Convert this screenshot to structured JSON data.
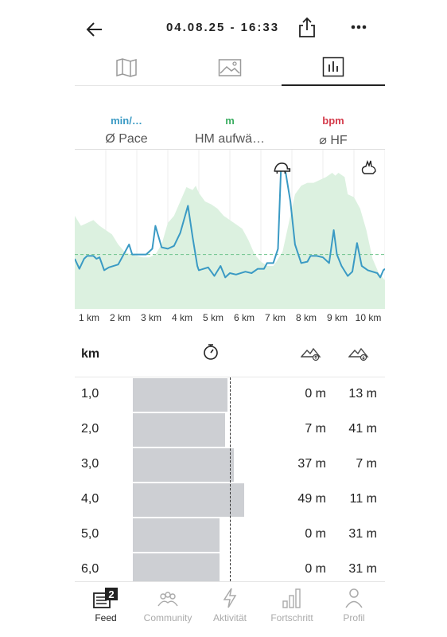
{
  "header": {
    "title": "04.08.25 - 16:33"
  },
  "view_tabs": [
    {
      "name": "map-icon"
    },
    {
      "name": "image-icon"
    },
    {
      "name": "chart-icon",
      "active": true
    }
  ],
  "metrics": [
    {
      "unit": "min/…",
      "label": "Ø Pace",
      "color": "#3a9ac4"
    },
    {
      "unit": "m",
      "label": "HM aufwä…",
      "color": "#3cae62"
    },
    {
      "unit": "bpm",
      "label": "⌀ HF",
      "color": "#d43a4a"
    }
  ],
  "chart_data": {
    "type": "line",
    "x_ticks": [
      "1 km",
      "2 km",
      "3 km",
      "4 km",
      "5 km",
      "6 km",
      "7 km",
      "8 km",
      "9 km",
      "10 km"
    ],
    "x_range_km": [
      0,
      10
    ],
    "series": [
      {
        "unit": "min/…",
        "points": [
          [
            0.0,
            0.35
          ],
          [
            0.15,
            0.28
          ],
          [
            0.3,
            0.35
          ],
          [
            0.4,
            0.37
          ],
          [
            0.6,
            0.37
          ],
          [
            0.7,
            0.35
          ],
          [
            0.8,
            0.36
          ],
          [
            0.95,
            0.27
          ],
          [
            1.1,
            0.29
          ],
          [
            1.4,
            0.31
          ],
          [
            1.75,
            0.45
          ],
          [
            1.85,
            0.38
          ],
          [
            2.2,
            0.38
          ],
          [
            2.3,
            0.38
          ],
          [
            2.5,
            0.42
          ],
          [
            2.6,
            0.58
          ],
          [
            2.8,
            0.43
          ],
          [
            3.0,
            0.42
          ],
          [
            3.2,
            0.44
          ],
          [
            3.4,
            0.53
          ],
          [
            3.65,
            0.72
          ],
          [
            3.8,
            0.5
          ],
          [
            3.95,
            0.3
          ],
          [
            4.0,
            0.27
          ],
          [
            4.3,
            0.29
          ],
          [
            4.5,
            0.23
          ],
          [
            4.7,
            0.3
          ],
          [
            4.85,
            0.22
          ],
          [
            5.0,
            0.25
          ],
          [
            5.2,
            0.24
          ],
          [
            5.5,
            0.26
          ],
          [
            5.7,
            0.25
          ],
          [
            5.9,
            0.28
          ],
          [
            6.1,
            0.28
          ],
          [
            6.2,
            0.32
          ],
          [
            6.4,
            0.32
          ],
          [
            6.55,
            0.42
          ],
          [
            6.65,
            1.0
          ],
          [
            6.8,
            0.95
          ],
          [
            6.95,
            0.75
          ],
          [
            7.1,
            0.45
          ],
          [
            7.3,
            0.32
          ],
          [
            7.5,
            0.33
          ],
          [
            7.6,
            0.37
          ],
          [
            7.8,
            0.37
          ],
          [
            8.0,
            0.36
          ],
          [
            8.2,
            0.32
          ],
          [
            8.35,
            0.55
          ],
          [
            8.45,
            0.38
          ],
          [
            8.6,
            0.3
          ],
          [
            8.8,
            0.23
          ],
          [
            8.95,
            0.26
          ],
          [
            9.1,
            0.46
          ],
          [
            9.25,
            0.3
          ],
          [
            9.45,
            0.27
          ],
          [
            9.75,
            0.25
          ],
          [
            9.85,
            0.22
          ],
          [
            9.95,
            0.27
          ],
          [
            10.0,
            0.28
          ]
        ]
      },
      {
        "unit": "m",
        "points": [
          [
            0.0,
            0.65
          ],
          [
            0.2,
            0.58
          ],
          [
            0.4,
            0.6
          ],
          [
            0.6,
            0.62
          ],
          [
            0.8,
            0.58
          ],
          [
            1.0,
            0.55
          ],
          [
            1.2,
            0.52
          ],
          [
            1.4,
            0.45
          ],
          [
            1.6,
            0.4
          ],
          [
            1.8,
            0.38
          ],
          [
            2.0,
            0.37
          ],
          [
            2.2,
            0.36
          ],
          [
            2.4,
            0.36
          ],
          [
            2.6,
            0.38
          ],
          [
            2.8,
            0.45
          ],
          [
            3.0,
            0.6
          ],
          [
            3.2,
            0.65
          ],
          [
            3.4,
            0.75
          ],
          [
            3.5,
            0.8
          ],
          [
            3.6,
            0.85
          ],
          [
            3.8,
            0.83
          ],
          [
            3.9,
            0.86
          ],
          [
            4.0,
            0.81
          ],
          [
            4.2,
            0.75
          ],
          [
            4.4,
            0.73
          ],
          [
            4.6,
            0.7
          ],
          [
            4.8,
            0.65
          ],
          [
            5.0,
            0.62
          ],
          [
            5.2,
            0.59
          ],
          [
            5.4,
            0.56
          ],
          [
            5.6,
            0.48
          ],
          [
            5.8,
            0.38
          ],
          [
            6.0,
            0.33
          ],
          [
            6.2,
            0.3
          ],
          [
            6.4,
            0.3
          ],
          [
            6.5,
            0.33
          ],
          [
            6.7,
            0.4
          ],
          [
            6.9,
            0.6
          ],
          [
            7.1,
            0.8
          ],
          [
            7.3,
            0.86
          ],
          [
            7.5,
            0.88
          ],
          [
            7.7,
            0.88
          ],
          [
            7.9,
            0.9
          ],
          [
            8.1,
            0.92
          ],
          [
            8.3,
            0.95
          ],
          [
            8.4,
            0.93
          ],
          [
            8.5,
            0.95
          ],
          [
            8.7,
            0.92
          ],
          [
            8.8,
            0.8
          ],
          [
            9.0,
            0.78
          ],
          [
            9.2,
            0.7
          ],
          [
            9.4,
            0.55
          ],
          [
            9.6,
            0.35
          ],
          [
            9.8,
            0.25
          ],
          [
            10.0,
            0.2
          ]
        ]
      }
    ],
    "reference_line": 0.38,
    "markers": [
      {
        "name": "slow-pace-turtle-icon",
        "x_km": 6.65
      },
      {
        "name": "fast-pace-hare-icon",
        "x_km": 9.7
      }
    ]
  },
  "table": {
    "header_km": "km",
    "rows": [
      {
        "km": "1,0",
        "pace": 0.77,
        "up": "0 m",
        "down": "13 m"
      },
      {
        "km": "2,0",
        "pace": 0.75,
        "up": "7 m",
        "down": "41 m"
      },
      {
        "km": "3,0",
        "pace": 0.82,
        "up": "37 m",
        "down": "7 m"
      },
      {
        "km": "4,0",
        "pace": 0.9,
        "up": "49 m",
        "down": "11 m"
      },
      {
        "km": "5,0",
        "pace": 0.7,
        "up": "0 m",
        "down": "31 m"
      },
      {
        "km": "6,0",
        "pace": 0.7,
        "up": "0 m",
        "down": "31 m"
      }
    ],
    "average_pace": 0.79
  },
  "bottom_nav": [
    {
      "label": "Feed",
      "badge": "2",
      "active": true
    },
    {
      "label": "Community"
    },
    {
      "label": "Aktivität"
    },
    {
      "label": "Fortschritt"
    },
    {
      "label": "Profil"
    }
  ]
}
